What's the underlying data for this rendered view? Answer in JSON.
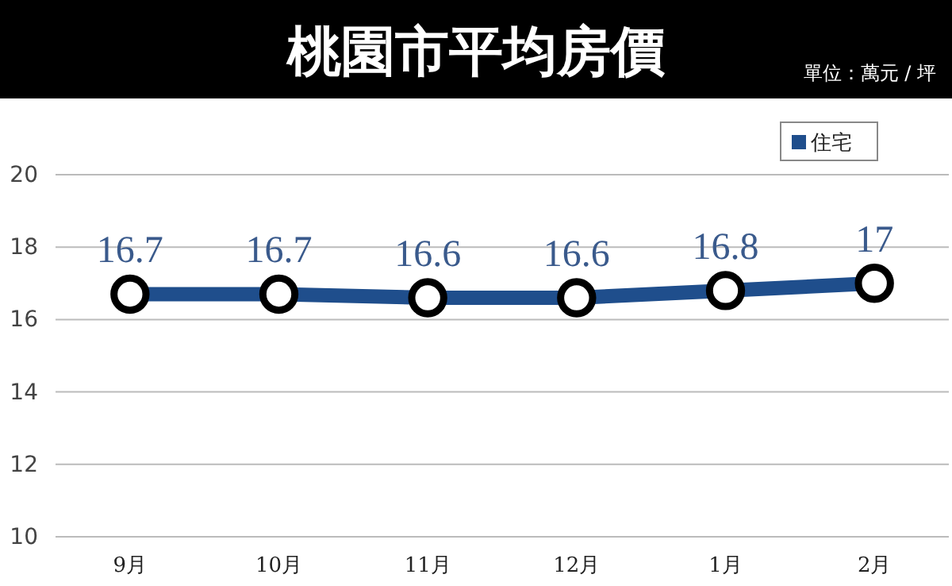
{
  "chart_data": {
    "type": "line",
    "title": "桃園市平均房價",
    "subtitle": "單位：萬元 / 坪",
    "categories": [
      "9月",
      "10月",
      "11月",
      "12月",
      "1月",
      "2月"
    ],
    "series": [
      {
        "name": "住宅",
        "color": "#1f4e8c",
        "values": [
          16.7,
          16.7,
          16.6,
          16.6,
          16.8,
          17
        ]
      }
    ],
    "ylim": [
      10,
      20
    ],
    "yticks": [
      10,
      12,
      14,
      16,
      18,
      20
    ],
    "grid": "y",
    "legend": "top right",
    "marker": "circle",
    "data_labels": true
  }
}
